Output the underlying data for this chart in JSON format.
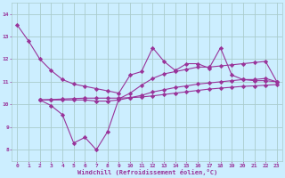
{
  "bg_color": "#cceeff",
  "line_color": "#993399",
  "grid_color": "#aacccc",
  "xlabel": "Windchill (Refroidissement éolien,°C)",
  "xlabel_color": "#993399",
  "ylim": [
    7.5,
    14.5
  ],
  "xlim": [
    -0.5,
    23.5
  ],
  "yticks": [
    8,
    9,
    10,
    11,
    12,
    13,
    14
  ],
  "xticks": [
    0,
    1,
    2,
    3,
    4,
    5,
    6,
    7,
    8,
    9,
    10,
    11,
    12,
    13,
    14,
    15,
    16,
    17,
    18,
    19,
    20,
    21,
    22,
    23
  ],
  "line1_x": [
    0,
    1,
    2,
    3,
    4,
    5,
    6,
    7,
    8,
    9,
    10,
    11,
    12,
    13,
    14,
    15,
    16,
    17,
    18,
    19,
    20,
    21,
    22,
    23
  ],
  "line1_y": [
    13.5,
    12.8,
    12.0,
    11.5,
    11.1,
    10.9,
    10.8,
    10.7,
    10.6,
    10.5,
    11.3,
    11.45,
    12.5,
    11.9,
    11.5,
    11.8,
    11.8,
    11.6,
    12.5,
    11.3,
    11.1,
    11.05,
    11.05,
    11.0
  ],
  "line2_x": [
    2,
    3,
    4,
    5,
    6,
    7,
    8,
    9,
    10,
    11,
    12,
    13,
    14,
    15,
    16,
    17,
    18,
    19,
    20,
    21,
    22,
    23
  ],
  "line2_y": [
    10.2,
    9.95,
    9.55,
    8.3,
    8.55,
    8.0,
    8.8,
    10.25,
    10.5,
    10.85,
    11.15,
    11.35,
    11.45,
    11.55,
    11.65,
    11.65,
    11.7,
    11.75,
    11.8,
    11.85,
    11.9,
    11.0
  ],
  "line3_x": [
    2,
    3,
    4,
    5,
    6,
    7,
    8,
    9,
    10,
    11,
    12,
    13,
    14,
    15,
    16,
    17,
    18,
    19,
    20,
    21,
    22,
    23
  ],
  "line3_y": [
    10.2,
    10.2,
    10.2,
    10.2,
    10.2,
    10.15,
    10.15,
    10.2,
    10.3,
    10.4,
    10.55,
    10.65,
    10.75,
    10.82,
    10.9,
    10.95,
    11.0,
    11.05,
    11.1,
    11.1,
    11.15,
    11.0
  ],
  "line4_x": [
    2,
    3,
    4,
    5,
    6,
    7,
    8,
    9,
    10,
    11,
    12,
    13,
    14,
    15,
    16,
    17,
    18,
    19,
    20,
    21,
    22,
    23
  ],
  "line4_y": [
    10.2,
    10.22,
    10.24,
    10.26,
    10.28,
    10.28,
    10.28,
    10.28,
    10.3,
    10.33,
    10.38,
    10.44,
    10.5,
    10.56,
    10.62,
    10.68,
    10.72,
    10.76,
    10.8,
    10.82,
    10.85,
    10.88
  ]
}
